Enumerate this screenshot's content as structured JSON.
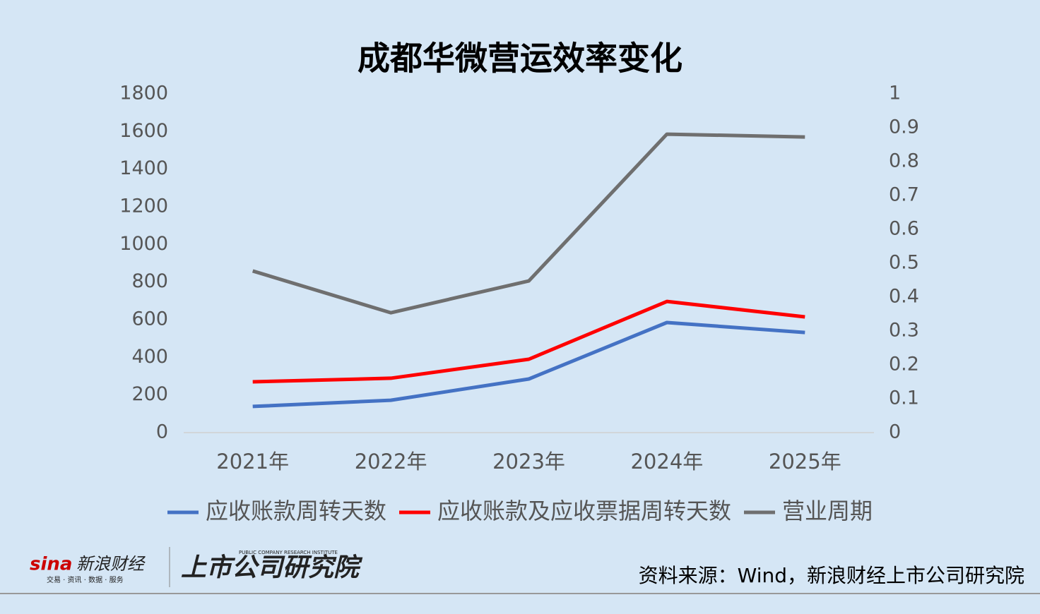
{
  "chart_data": {
    "type": "line",
    "title": "成都华微营运效率变化",
    "categories": [
      "2021年",
      "2022年",
      "2023年",
      "2024年",
      "2025年"
    ],
    "series": [
      {
        "name": "应收账款周转天数",
        "color": "#4472c4",
        "values": [
          139,
          172,
          285,
          585,
          532
        ]
      },
      {
        "name": "应收账款及应收票据周转天数",
        "color": "#ff0000",
        "values": [
          270,
          289,
          390,
          697,
          615
        ]
      },
      {
        "name": "营业周期",
        "color": "#6f6f6f",
        "values": [
          859,
          637,
          806,
          1586,
          1571
        ]
      }
    ],
    "ylim": [
      0,
      1800
    ],
    "yticks": [
      0,
      200,
      400,
      600,
      800,
      1000,
      1200,
      1400,
      1600,
      1800
    ],
    "y2lim": [
      0,
      1
    ],
    "y2ticks": [
      0,
      0.1,
      0.2,
      0.3,
      0.4,
      0.5,
      0.6,
      0.7,
      0.8,
      0.9,
      1
    ],
    "legend": "bottom"
  },
  "footer": {
    "logo": "sina",
    "brand": "新浪财经",
    "tagline": "交易 · 资讯 · 数据 · 服务",
    "institute_en": "PUBLIC COMPANY RESEARCH INSTITUTE",
    "institute": "上市公司研究院",
    "source": "资料来源：Wind，新浪财经上市公司研究院"
  }
}
